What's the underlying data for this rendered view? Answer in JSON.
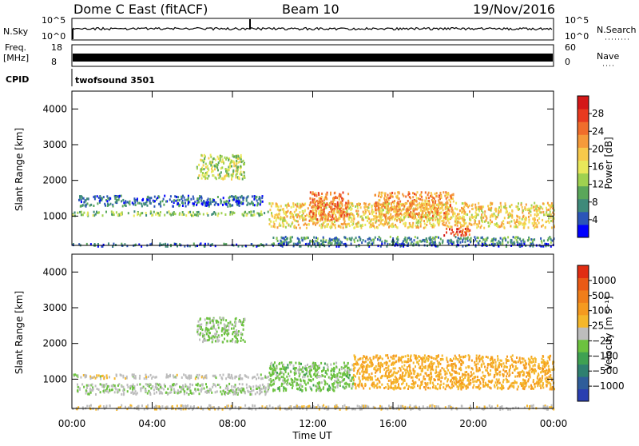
{
  "header": {
    "radar": "Dome C East (fitACF)",
    "beam": "Beam 10",
    "date": "19/Nov/2016"
  },
  "strip": {
    "nsky_label": "N.Sky",
    "nsky_ticks": [
      "10^5",
      "10^0"
    ],
    "nsearch_label": "N.Search",
    "nsearch_ticks": [
      "10^5",
      "10^0"
    ],
    "freq_label": "Freq.",
    "freq_unit": "[MHz]",
    "freq_ticks": [
      "18",
      "8"
    ],
    "nave_label": "Nave",
    "nave_ticks": [
      "60",
      "0"
    ],
    "cpid_label": "CPID",
    "cpid_value": "twofsound 3501"
  },
  "x_axis": {
    "ticks": [
      "00:00",
      "04:00",
      "08:00",
      "12:00",
      "16:00",
      "20:00",
      "00:00"
    ],
    "label": "Time UT"
  },
  "chart_data": [
    {
      "type": "heatmap",
      "panel": "power",
      "ylabel": "Slant Range [km]",
      "yticks": [
        "1000",
        "2000",
        "3000",
        "4000"
      ],
      "ylim": [
        180,
        4500
      ],
      "xlim_hours": [
        0,
        24
      ],
      "colorbar": {
        "label": "Power [dB]",
        "ticks": [
          "4",
          "8",
          "12",
          "16",
          "20",
          "24",
          "28"
        ],
        "range": [
          0,
          32
        ],
        "colors": [
          "#0000ff",
          "#2b55b8",
          "#3f8a7a",
          "#5aa75a",
          "#9fd150",
          "#e9e85a",
          "#f7c94b",
          "#f59a3a",
          "#f06d2b",
          "#e83a1f",
          "#d41818"
        ]
      },
      "regions": [
        {
          "t0": 0.0,
          "t1": 9.8,
          "r0": 1040,
          "r1": 1160,
          "level": 12
        },
        {
          "t0": 0.3,
          "t1": 9.5,
          "r0": 1300,
          "r1": 1600,
          "level": 6
        },
        {
          "t0": 6.2,
          "t1": 8.6,
          "r0": 2050,
          "r1": 2750,
          "level": 14
        },
        {
          "t0": 9.8,
          "t1": 24.0,
          "r0": 700,
          "r1": 1400,
          "level": 18
        },
        {
          "t0": 11.8,
          "t1": 13.8,
          "r0": 900,
          "r1": 1700,
          "level": 24
        },
        {
          "t0": 15.0,
          "t1": 19.0,
          "r0": 1000,
          "r1": 1700,
          "level": 22
        },
        {
          "t0": 18.5,
          "t1": 19.8,
          "r0": 480,
          "r1": 700,
          "level": 26
        },
        {
          "t0": 10.0,
          "t1": 24.0,
          "r0": 250,
          "r1": 450,
          "level": 8
        },
        {
          "t0": 0.0,
          "t1": 24.0,
          "r0": 180,
          "r1": 260,
          "level": 5
        }
      ]
    },
    {
      "type": "heatmap",
      "panel": "velocity",
      "ylabel": "Slant Range [km]",
      "yticks": [
        "1000",
        "2000",
        "3000",
        "4000"
      ],
      "ylim": [
        180,
        4500
      ],
      "xlim_hours": [
        0,
        24
      ],
      "colorbar": {
        "label": "Velocity [m s⁻¹]",
        "ticks": [
          "1000",
          "500",
          "100",
          "25",
          "−25",
          "−100",
          "−500",
          "−1000"
        ],
        "range": [
          -1200,
          1200
        ],
        "colors": [
          "#2a3fb0",
          "#2f5d9a",
          "#2f8070",
          "#3fa152",
          "#6cc23f",
          "#bdbdbd",
          "#f5b72b",
          "#f59a1f",
          "#f07e1a",
          "#ea5a15",
          "#e02d12"
        ]
      },
      "regions": [
        {
          "t0": 0.0,
          "t1": 9.8,
          "r0": 1040,
          "r1": 1160,
          "level": 0
        },
        {
          "t0": 6.2,
          "t1": 8.6,
          "r0": 2050,
          "r1": 2750,
          "level": -150
        },
        {
          "t0": 9.8,
          "t1": 14.0,
          "r0": 700,
          "r1": 1500,
          "level": -200
        },
        {
          "t0": 14.0,
          "t1": 24.0,
          "r0": 750,
          "r1": 1700,
          "level": 300
        },
        {
          "t0": 0.2,
          "t1": 9.8,
          "r0": 600,
          "r1": 900,
          "level": -80
        },
        {
          "t0": 0.0,
          "t1": 24.0,
          "r0": 180,
          "r1": 300,
          "level": 60
        }
      ]
    }
  ]
}
